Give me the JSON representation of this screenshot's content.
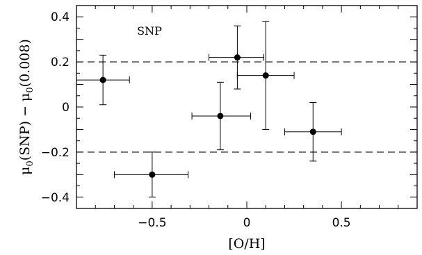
{
  "chart_data": {
    "type": "scatter",
    "title": "",
    "xlabel": "[O/H]",
    "ylabel": "μ0(SNP) − μ0(0.008)",
    "ylabel_parts": {
      "a": "μ",
      "a_sub": "0",
      "b": "(SNP) − ",
      "c": "μ",
      "c_sub": "0",
      "d": "(0.008)"
    },
    "xlim": [
      -0.9,
      0.9
    ],
    "ylim": [
      -0.45,
      0.45
    ],
    "grid": false,
    "x_ticks": [
      {
        "value": -0.5,
        "label": "−0.5"
      },
      {
        "value": 0,
        "label": "0"
      },
      {
        "value": 0.5,
        "label": "0.5"
      }
    ],
    "y_ticks": [
      {
        "value": -0.4,
        "label": "−0.4"
      },
      {
        "value": -0.2,
        "label": "−0.2"
      },
      {
        "value": 0,
        "label": "0"
      },
      {
        "value": 0.2,
        "label": "0.2"
      },
      {
        "value": 0.4,
        "label": "0.4"
      }
    ],
    "reference_lines": [
      0.2,
      -0.2
    ],
    "annotations": [
      {
        "text": "SNP",
        "x": -0.58,
        "y": 0.32
      }
    ],
    "points": [
      {
        "x": -0.76,
        "y": 0.12,
        "x_lo": -0.9,
        "x_hi": -0.62,
        "y_lo": 0.01,
        "y_hi": 0.23
      },
      {
        "x": -0.5,
        "y": -0.3,
        "x_lo": -0.7,
        "x_hi": -0.31,
        "y_lo": -0.4,
        "y_hi": -0.2
      },
      {
        "x": -0.14,
        "y": -0.04,
        "x_lo": -0.29,
        "x_hi": 0.02,
        "y_lo": -0.19,
        "y_hi": 0.11
      },
      {
        "x": -0.05,
        "y": 0.22,
        "x_lo": -0.2,
        "x_hi": 0.09,
        "y_lo": 0.08,
        "y_hi": 0.36
      },
      {
        "x": 0.1,
        "y": 0.14,
        "x_lo": -0.05,
        "x_hi": 0.25,
        "y_lo": -0.1,
        "y_hi": 0.38
      },
      {
        "x": 0.35,
        "y": -0.11,
        "x_lo": 0.2,
        "x_hi": 0.5,
        "y_lo": -0.24,
        "y_hi": 0.02
      }
    ]
  }
}
